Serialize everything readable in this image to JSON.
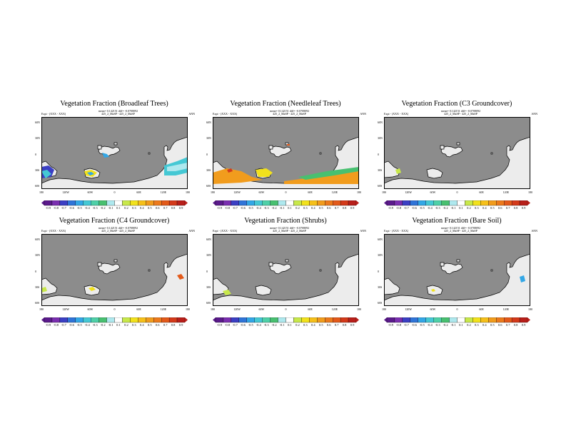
{
  "chart_data": [
    {
      "type": "heatmap",
      "title": "Vegetation Fraction (Broadleaf Trees)",
      "subtitle": "mean= 0.142151 diff= -0.0708092",
      "expt": "Expt - (XXX - XXX)",
      "run": "425_2_MaSP - 425_2_MaSP",
      "period": "ANN",
      "yticks": [
        "60N",
        "30N",
        "0",
        "30S",
        "60S"
      ],
      "xticks": [
        "180",
        "120W",
        "60W",
        "0",
        "60E",
        "120E",
        "180"
      ],
      "colorbar": [
        "-0.9",
        "-0.8",
        "-0.7",
        "-0.6",
        "-0.5",
        "-0.4",
        "-0.3",
        "-0.2",
        "-0.1",
        "0.1",
        "0.2",
        "0.3",
        "0.4",
        "0.5",
        "0.6",
        "0.7",
        "0.8",
        "0.9"
      ]
    },
    {
      "type": "heatmap",
      "title": "Vegetation Fraction (Needleleaf Trees)",
      "subtitle": "mean= 0.142151 diff= -0.0708092",
      "expt": "Expt - (XXX - XXX)",
      "run": "425_2_MaSP - 425_2_MaSP",
      "period": "ANN",
      "yticks": [
        "60N",
        "30N",
        "0",
        "30S",
        "60S"
      ],
      "xticks": [
        "180",
        "120W",
        "60W",
        "0",
        "60E",
        "120E",
        "180"
      ],
      "colorbar": [
        "-0.9",
        "-0.8",
        "-0.7",
        "-0.6",
        "-0.5",
        "-0.4",
        "-0.3",
        "-0.2",
        "-0.1",
        "0.1",
        "0.2",
        "0.3",
        "0.4",
        "0.5",
        "0.6",
        "0.7",
        "0.8",
        "0.9"
      ]
    },
    {
      "type": "heatmap",
      "title": "Vegetation Fraction (C3 Groundcover)",
      "subtitle": "mean= 0.142151 diff= -0.0708092",
      "expt": "Expt - (XXX - XXX)",
      "run": "425_2_MaSP - 425_2_MaSP",
      "period": "ANN",
      "yticks": [
        "60N",
        "30N",
        "0",
        "30S",
        "60S"
      ],
      "xticks": [
        "180",
        "120W",
        "60W",
        "0",
        "60E",
        "120E",
        "180"
      ],
      "colorbar": [
        "-0.9",
        "-0.8",
        "-0.7",
        "-0.6",
        "-0.5",
        "-0.4",
        "-0.3",
        "-0.2",
        "-0.1",
        "0.1",
        "0.2",
        "0.3",
        "0.4",
        "0.5",
        "0.6",
        "0.7",
        "0.8",
        "0.9"
      ]
    },
    {
      "type": "heatmap",
      "title": "Vegetation Fraction (C4 Groundcover)",
      "subtitle": "mean= 0.142151 diff= -0.0708092",
      "expt": "Expt - (XXX - XXX)",
      "run": "425_2_MaSP - 425_2_MaSP",
      "period": "ANN",
      "yticks": [
        "60N",
        "30N",
        "0",
        "30S",
        "60S"
      ],
      "xticks": [
        "180",
        "120W",
        "60W",
        "0",
        "60E",
        "120E",
        "180"
      ],
      "colorbar": [
        "-0.9",
        "-0.8",
        "-0.7",
        "-0.6",
        "-0.5",
        "-0.4",
        "-0.3",
        "-0.2",
        "-0.1",
        "0.1",
        "0.2",
        "0.3",
        "0.4",
        "0.5",
        "0.6",
        "0.7",
        "0.8",
        "0.9"
      ]
    },
    {
      "type": "heatmap",
      "title": "Vegetation Fraction (Shrubs)",
      "subtitle": "mean= 0.142151 diff= -0.0708092",
      "expt": "Expt - (XXX - XXX)",
      "run": "425_2_MaSP - 425_2_MaSP",
      "period": "ANN",
      "yticks": [
        "60N",
        "30N",
        "0",
        "30S",
        "60S"
      ],
      "xticks": [
        "180",
        "120W",
        "60W",
        "0",
        "60E",
        "120E",
        "180"
      ],
      "colorbar": [
        "-0.9",
        "-0.8",
        "-0.7",
        "-0.6",
        "-0.5",
        "-0.4",
        "-0.3",
        "-0.2",
        "-0.1",
        "0.1",
        "0.2",
        "0.3",
        "0.4",
        "0.5",
        "0.6",
        "0.7",
        "0.8",
        "0.9"
      ]
    },
    {
      "type": "heatmap",
      "title": "Vegetation Fraction (Bare Soil)",
      "subtitle": "mean= 0.142151 diff= -0.0708092",
      "expt": "Expt - (XXX - XXX)",
      "run": "425_2_MaSP - 425_2_MaSP",
      "period": "ANN",
      "yticks": [
        "60N",
        "30N",
        "0",
        "30S",
        "60S"
      ],
      "xticks": [
        "180",
        "120W",
        "60W",
        "0",
        "60E",
        "120E",
        "180"
      ],
      "colorbar": [
        "-0.9",
        "-0.8",
        "-0.7",
        "-0.6",
        "-0.5",
        "-0.4",
        "-0.3",
        "-0.2",
        "-0.1",
        "0.1",
        "0.2",
        "0.3",
        "0.4",
        "0.5",
        "0.6",
        "0.7",
        "0.8",
        "0.9"
      ]
    }
  ],
  "colors": {
    "ocean": "#8c8c8c",
    "land": "#ececec",
    "scale": [
      "#5b1a8c",
      "#7a2fb0",
      "#3b3fc4",
      "#2f74d8",
      "#33a7e6",
      "#45c8d4",
      "#4fd0a8",
      "#48c070",
      "#aee8ee",
      "#ffffff",
      "#c8e84a",
      "#f2e21c",
      "#f6c01a",
      "#f19c1d",
      "#ec7a1c",
      "#e35a1a",
      "#d43a1a",
      "#b81f1a"
    ],
    "edge": [
      "#5b1a8c",
      "#b81f1a"
    ]
  }
}
